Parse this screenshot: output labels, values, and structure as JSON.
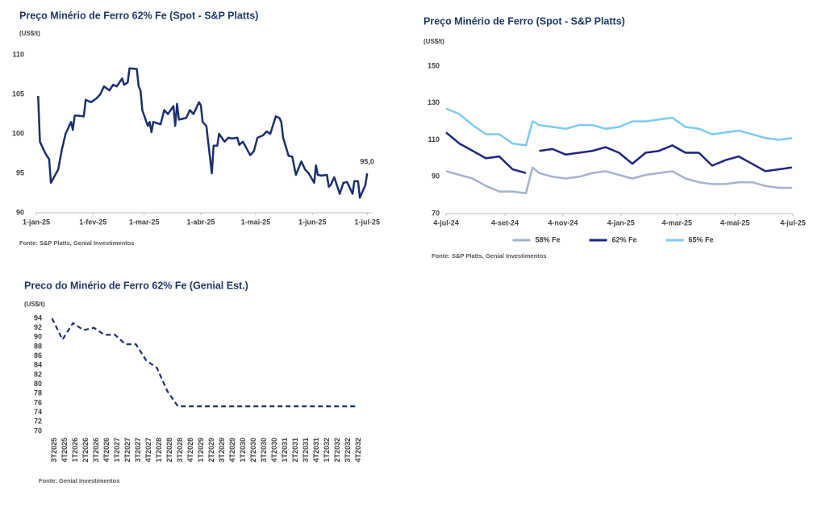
{
  "chart_data": [
    {
      "type": "line",
      "title": "Preço Minério de Ferro 62% Fe (Spot - S&P Platts)",
      "unit_label": "(US$/t)",
      "source": "Fonte: S&P Platts, Genial Investimentos",
      "x": [
        "2025-01-02",
        "2025-01-03",
        "2025-01-06",
        "2025-01-08",
        "2025-01-09",
        "2025-01-10",
        "2025-01-13",
        "2025-01-15",
        "2025-01-17",
        "2025-01-20",
        "2025-01-21",
        "2025-01-22",
        "2025-01-24",
        "2025-01-27",
        "2025-01-28",
        "2025-01-31",
        "2025-02-03",
        "2025-02-05",
        "2025-02-07",
        "2025-02-10",
        "2025-02-12",
        "2025-02-14",
        "2025-02-17",
        "2025-02-18",
        "2025-02-20",
        "2025-02-21",
        "2025-02-25",
        "2025-02-26",
        "2025-02-27",
        "2025-02-28",
        "2025-03-03",
        "2025-03-04",
        "2025-03-05",
        "2025-03-06",
        "2025-03-10",
        "2025-03-12",
        "2025-03-14",
        "2025-03-17",
        "2025-03-18",
        "2025-03-19",
        "2025-03-20",
        "2025-03-24",
        "2025-03-26",
        "2025-03-28",
        "2025-03-31",
        "2025-04-01",
        "2025-04-02",
        "2025-04-04",
        "2025-04-07",
        "2025-04-08",
        "2025-04-10",
        "2025-04-11",
        "2025-04-14",
        "2025-04-16",
        "2025-04-18",
        "2025-04-21",
        "2025-04-22",
        "2025-04-24",
        "2025-04-28",
        "2025-04-30",
        "2025-05-02",
        "2025-05-05",
        "2025-05-07",
        "2025-05-09",
        "2025-05-12",
        "2025-05-14",
        "2025-05-15",
        "2025-05-16",
        "2025-05-19",
        "2025-05-21",
        "2025-05-23",
        "2025-05-26",
        "2025-05-28",
        "2025-05-30",
        "2025-06-02",
        "2025-06-03",
        "2025-06-04",
        "2025-06-06",
        "2025-06-09",
        "2025-06-10",
        "2025-06-11",
        "2025-06-13",
        "2025-06-16",
        "2025-06-18",
        "2025-06-20",
        "2025-06-23",
        "2025-06-24",
        "2025-06-26",
        "2025-06-27",
        "2025-06-30",
        "2025-07-01"
      ],
      "values": [
        104.8,
        99,
        97.5,
        96.8,
        93.8,
        94.2,
        95.5,
        98,
        100,
        101.5,
        100.5,
        102.3,
        102.3,
        102.2,
        104.3,
        104,
        104.5,
        105,
        106,
        105.5,
        106.2,
        106,
        107,
        106.2,
        106.5,
        108.3,
        108.2,
        106,
        105.5,
        103,
        101,
        101.5,
        100.2,
        101.5,
        101.2,
        103,
        102.5,
        103.5,
        101,
        103.8,
        101.8,
        102,
        103,
        102.5,
        104,
        103.6,
        101.5,
        101,
        95,
        98.5,
        98.5,
        100,
        99,
        99.5,
        99.4,
        99.5,
        98.6,
        99,
        97.3,
        97.8,
        99.5,
        99.8,
        100.3,
        100,
        102.2,
        102,
        101.5,
        99.5,
        97.2,
        97.1,
        94.8,
        96.5,
        95.5,
        95,
        93.8,
        96,
        94.8,
        94.7,
        94.8,
        93.3,
        93.5,
        94.5,
        92.4,
        93.8,
        93.9,
        92.4,
        94,
        94,
        91.9,
        93.5,
        95
      ],
      "end_label": "95,0",
      "color": "#1b2f6e",
      "xlim": [
        "2025-01-01",
        "2025-07-04"
      ],
      "xticks": [
        {
          "value": "2025-01-01",
          "label": "1-jan-25"
        },
        {
          "value": "2025-02-01",
          "label": "1-fev-25"
        },
        {
          "value": "2025-03-01",
          "label": "1-mar-25"
        },
        {
          "value": "2025-04-01",
          "label": "1-abr-25"
        },
        {
          "value": "2025-05-01",
          "label": "1-mai-25"
        },
        {
          "value": "2025-06-01",
          "label": "1-jun-25"
        },
        {
          "value": "2025-07-01",
          "label": "1-jul-25"
        }
      ],
      "ylim": [
        90,
        110
      ],
      "yticks": [
        90,
        95,
        100,
        105,
        110
      ],
      "grid": false
    },
    {
      "type": "line",
      "title": "Preço Minério de Ferro (Spot - S&P Platts)",
      "unit_label": "(US$/t)",
      "source": "Fonte: S&P Platts, Genial Investimentos",
      "x": [
        "2024-07-04",
        "2024-07-18",
        "2024-08-01",
        "2024-08-15",
        "2024-08-29",
        "2024-09-12",
        "2024-09-26",
        "2024-10-03",
        "2024-10-10",
        "2024-10-24",
        "2024-11-07",
        "2024-11-21",
        "2024-12-05",
        "2024-12-19",
        "2025-01-02",
        "2025-01-16",
        "2025-01-30",
        "2025-02-13",
        "2025-02-27",
        "2025-03-13",
        "2025-03-27",
        "2025-04-10",
        "2025-04-24",
        "2025-05-08",
        "2025-05-22",
        "2025-06-05",
        "2025-06-19",
        "2025-07-03"
      ],
      "series": [
        {
          "name": "58% Fe",
          "color": "#a3b3cc",
          "values": [
            93,
            91,
            89,
            85,
            82,
            82,
            81,
            95,
            92,
            90,
            89,
            90,
            92,
            93,
            91,
            89,
            91,
            92,
            93,
            89,
            87,
            86,
            86,
            87,
            87,
            85,
            84,
            84
          ]
        },
        {
          "name": "62% Fe",
          "color": "#1c2580",
          "values": [
            114,
            108,
            104,
            100,
            101,
            94,
            92,
            null,
            104,
            105,
            102,
            103,
            104,
            106,
            103,
            97,
            103,
            104,
            107,
            103,
            103,
            96,
            99,
            101,
            97,
            93,
            94,
            95
          ]
        },
        {
          "name": "65% Fe",
          "color": "#7ccbee",
          "values": [
            127,
            124,
            118,
            113,
            113,
            108,
            107,
            120,
            118,
            117,
            116,
            118,
            118,
            116,
            117,
            120,
            120,
            121,
            122,
            117,
            116,
            113,
            114,
            115,
            113,
            111,
            110,
            111
          ]
        }
      ],
      "xlim": [
        "2024-07-04",
        "2025-07-04"
      ],
      "xticks": [
        {
          "value": "2024-07-04",
          "label": "4-jul-24"
        },
        {
          "value": "2024-09-04",
          "label": "4-set-24"
        },
        {
          "value": "2024-11-04",
          "label": "4-nov-24"
        },
        {
          "value": "2025-01-04",
          "label": "4-jan-25"
        },
        {
          "value": "2025-03-04",
          "label": "4-mar-25"
        },
        {
          "value": "2025-05-04",
          "label": "4-mai-25"
        },
        {
          "value": "2025-07-04",
          "label": "4-jul-25"
        }
      ],
      "ylim": [
        70,
        150
      ],
      "yticks": [
        70,
        90,
        110,
        130,
        150
      ],
      "grid": false,
      "legend": "bottom"
    },
    {
      "type": "line",
      "title": "Preco do Minério de Ferro 62% Fe (Genial Est.)",
      "unit_label": "(US$/t)",
      "source": "Fonte: Genial Investimentos",
      "categories": [
        "3T2025",
        "4T2025",
        "1T2026",
        "2T2026",
        "3T2026",
        "4T2026",
        "1T2027",
        "2T2027",
        "3T2027",
        "4T2027",
        "1T2028",
        "2T2028",
        "3T2028",
        "4T2028",
        "1T2029",
        "2T2029",
        "3T2029",
        "4T2029",
        "1T2030",
        "2T2030",
        "3T2030",
        "4T2030",
        "1T2031",
        "2T2031",
        "3T2031",
        "4T2031",
        "1T2032",
        "2T2032",
        "3T2032",
        "4T2032"
      ],
      "values": [
        94,
        89.5,
        93,
        91.5,
        92,
        90.5,
        90.5,
        88.5,
        88.5,
        85,
        83.5,
        78.5,
        75.3,
        75.3,
        75.3,
        75.3,
        75.3,
        75.3,
        75.3,
        75.3,
        75.3,
        75.3,
        75.3,
        75.3,
        75.3,
        75.3,
        75.3,
        75.3,
        75.3,
        75.3
      ],
      "color": "#1b2f6e",
      "line_style": "dashed",
      "ylim": [
        70,
        94
      ],
      "yticks": [
        70,
        72,
        74,
        76,
        78,
        80,
        82,
        84,
        86,
        88,
        90,
        92,
        94
      ],
      "grid": false
    }
  ]
}
